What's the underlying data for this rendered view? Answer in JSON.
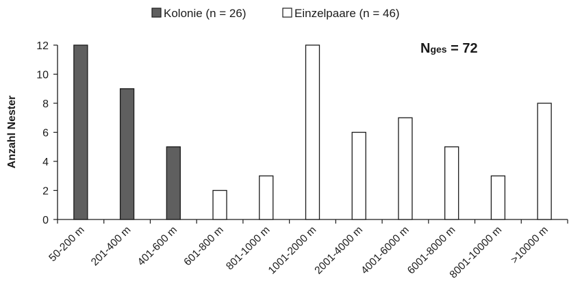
{
  "chart_data": {
    "type": "bar",
    "categories": [
      "50-200 m",
      "201-400 m",
      "401-600 m",
      "601-800 m",
      "801-1000 m",
      "1001-2000 m",
      "2001-4000 m",
      "4001-6000 m",
      "6001-8000 m",
      "8001-10000 m",
      ">10000 m"
    ],
    "series": [
      {
        "name": "Kolonie (n = 26)",
        "values": [
          12,
          9,
          5,
          null,
          null,
          null,
          null,
          null,
          null,
          null,
          null
        ],
        "color": "#5f5f5f"
      },
      {
        "name": "Einzelpaare (n = 46)",
        "values": [
          null,
          null,
          null,
          2,
          3,
          12,
          6,
          7,
          5,
          3,
          8
        ],
        "color": "#ffffff"
      }
    ],
    "ylabel": "Anzahl Nester",
    "xlabel": "",
    "ylim": [
      0,
      12
    ],
    "yticks": [
      0,
      2,
      4,
      6,
      8,
      10,
      12
    ],
    "grid": false,
    "legend": "top-center",
    "annotation": {
      "main": "N",
      "subscript": "ges",
      "rest": " = 72"
    }
  }
}
